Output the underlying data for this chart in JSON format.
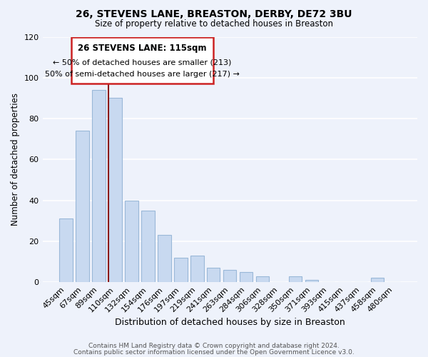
{
  "title": "26, STEVENS LANE, BREASTON, DERBY, DE72 3BU",
  "subtitle": "Size of property relative to detached houses in Breaston",
  "xlabel": "Distribution of detached houses by size in Breaston",
  "ylabel": "Number of detached properties",
  "bar_color": "#c8d9f0",
  "bar_edge_color": "#9ab8d8",
  "bg_color": "#eef2fb",
  "grid_color": "#ffffff",
  "categories": [
    "45sqm",
    "67sqm",
    "89sqm",
    "110sqm",
    "132sqm",
    "154sqm",
    "176sqm",
    "197sqm",
    "219sqm",
    "241sqm",
    "263sqm",
    "284sqm",
    "306sqm",
    "328sqm",
    "350sqm",
    "371sqm",
    "393sqm",
    "415sqm",
    "437sqm",
    "458sqm",
    "480sqm"
  ],
  "values": [
    31,
    74,
    94,
    90,
    40,
    35,
    23,
    12,
    13,
    7,
    6,
    5,
    3,
    0,
    3,
    1,
    0,
    0,
    0,
    2,
    0
  ],
  "ylim": [
    0,
    120
  ],
  "yticks": [
    0,
    20,
    40,
    60,
    80,
    100,
    120
  ],
  "vline_after_index": 3,
  "marker_label": "26 STEVENS LANE: 115sqm",
  "annotation_line1": "← 50% of detached houses are smaller (213)",
  "annotation_line2": "50% of semi-detached houses are larger (217) →",
  "vline_color": "#8b1a1a",
  "box_edge_color": "#cc2222",
  "footer1": "Contains HM Land Registry data © Crown copyright and database right 2024.",
  "footer2": "Contains public sector information licensed under the Open Government Licence v3.0."
}
